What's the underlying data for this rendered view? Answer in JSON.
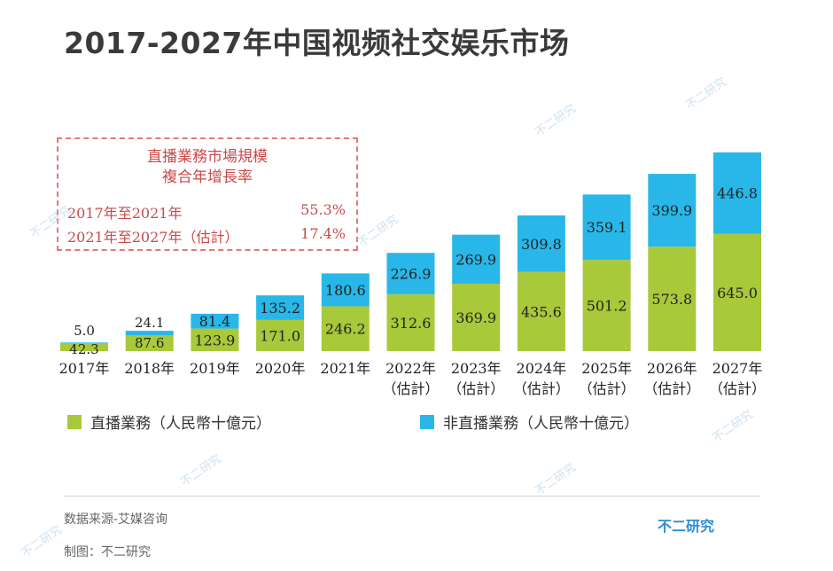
{
  "title": "2017-2027年中国视频社交娱乐市场",
  "cagr": {
    "heading_line1": "直播業務市場規模",
    "heading_line2": "複合年增長率",
    "rows": [
      {
        "label": "2017年至2021年",
        "value": "55.3%"
      },
      {
        "label": "2021年至2027年（估計）",
        "value": "17.4%"
      }
    ]
  },
  "chart_data": {
    "type": "bar",
    "stacked": true,
    "categories": [
      "2017年",
      "2018年",
      "2019年",
      "2020年",
      "2021年",
      "2022年",
      "2023年",
      "2024年",
      "2025年",
      "2026年",
      "2027年"
    ],
    "category_sublabels": [
      "",
      "",
      "",
      "",
      "",
      "（估計）",
      "（估計）",
      "（估計）",
      "（估計）",
      "（估計）",
      "（估計）"
    ],
    "series": [
      {
        "name": "直播業務（人民幣十億元）",
        "color": "#a8c93a",
        "values": [
          42.3,
          87.6,
          123.9,
          171.0,
          246.2,
          312.6,
          369.9,
          435.6,
          501.2,
          573.8,
          645.0
        ],
        "labels": [
          "42.3",
          "87.6",
          "123.9",
          "171.0",
          "246.2",
          "312.6",
          "369.9",
          "435.6",
          "501.2",
          "573.8",
          "645.0"
        ]
      },
      {
        "name": "非直播業務（人民幣十億元）",
        "color": "#28b7e8",
        "values": [
          5.0,
          24.1,
          81.4,
          135.2,
          180.6,
          226.9,
          269.9,
          309.8,
          359.1,
          399.9,
          446.8
        ],
        "labels": [
          "5.0",
          "24.1",
          "81.4",
          "135.2",
          "180.6",
          "226.9",
          "269.9",
          "309.8",
          "359.1",
          "399.9",
          "446.8"
        ]
      }
    ],
    "ylim": [
      0,
      1100
    ]
  },
  "legend": {
    "live": {
      "label": "直播業務（人民幣十億元）",
      "color": "#a8c93a"
    },
    "nonlive": {
      "label": "非直播業務（人民幣十億元）",
      "color": "#28b7e8"
    }
  },
  "footer": {
    "source": "数据来源-艾媒咨询",
    "made_by": "制图：不二研究",
    "brand": "不二研究"
  },
  "watermark": {
    "text": "不二研究"
  }
}
